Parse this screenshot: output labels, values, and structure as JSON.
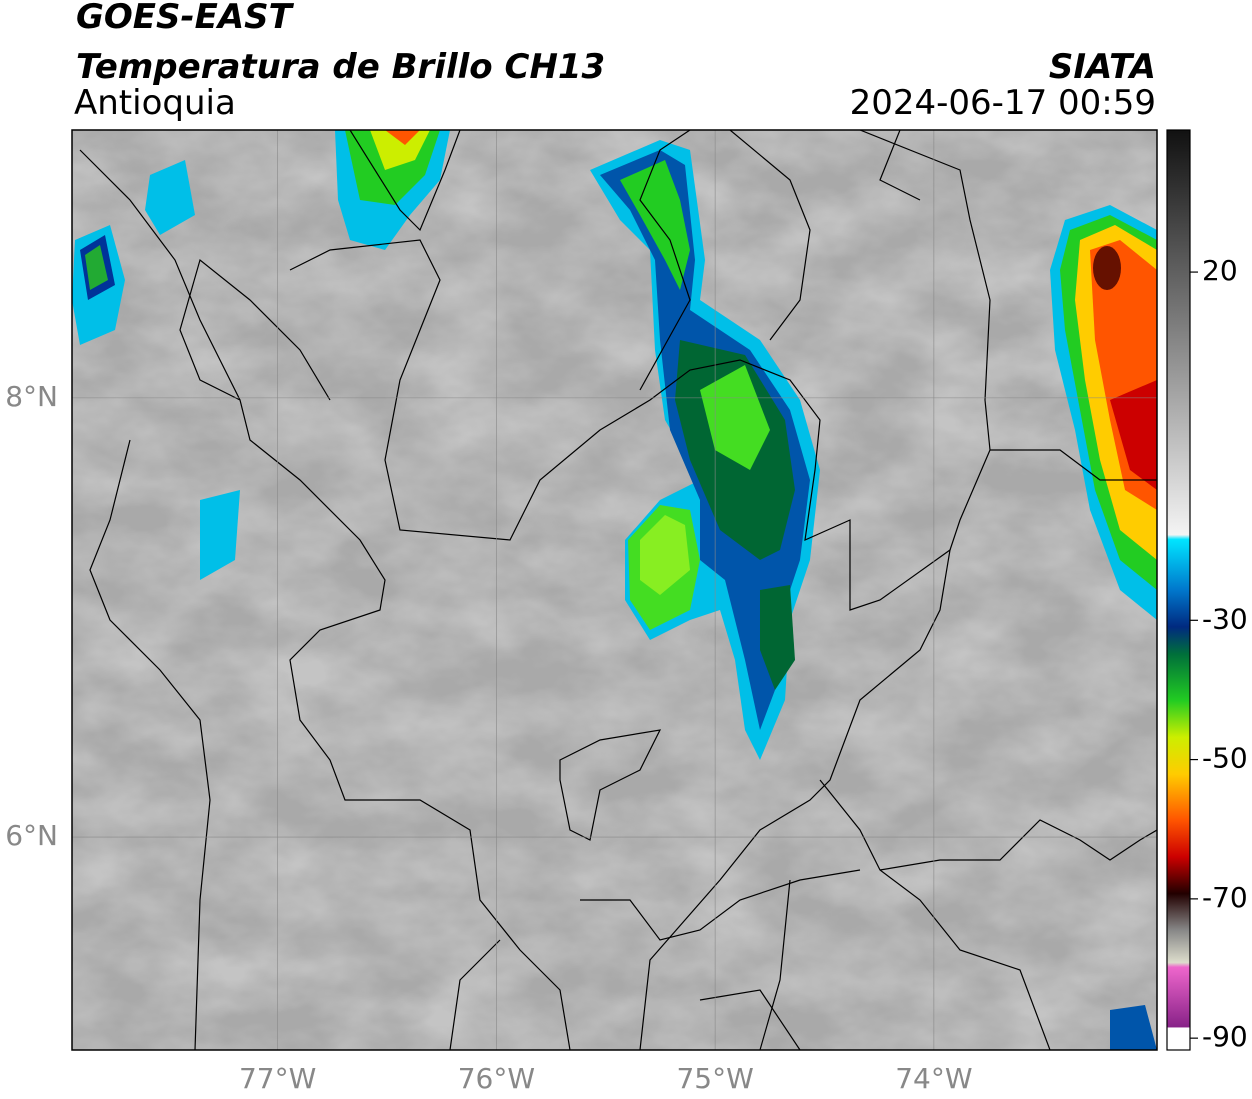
{
  "header": {
    "title": "GOES-EAST",
    "subtitle": "Temperatura de Brillo CH13",
    "region": "Antioquia",
    "source": "SIATA",
    "datetime": "2024-06-17 00:59"
  },
  "map": {
    "xlim": [
      -77.94,
      -72.98
    ],
    "ylim": [
      5.03,
      9.22
    ],
    "xticks": [
      {
        "value": -77,
        "label": "77°W"
      },
      {
        "value": -76,
        "label": "76°W"
      },
      {
        "value": -75,
        "label": "75°W"
      },
      {
        "value": -74,
        "label": "74°W"
      }
    ],
    "yticks": [
      {
        "value": 8,
        "label": "8°N"
      },
      {
        "value": 6,
        "label": "6°N"
      }
    ],
    "grid": true
  },
  "colorbar": {
    "lim": [
      -91.7,
      40.4
    ],
    "ticks": [
      20,
      -30,
      -50,
      -70,
      -90
    ]
  }
}
